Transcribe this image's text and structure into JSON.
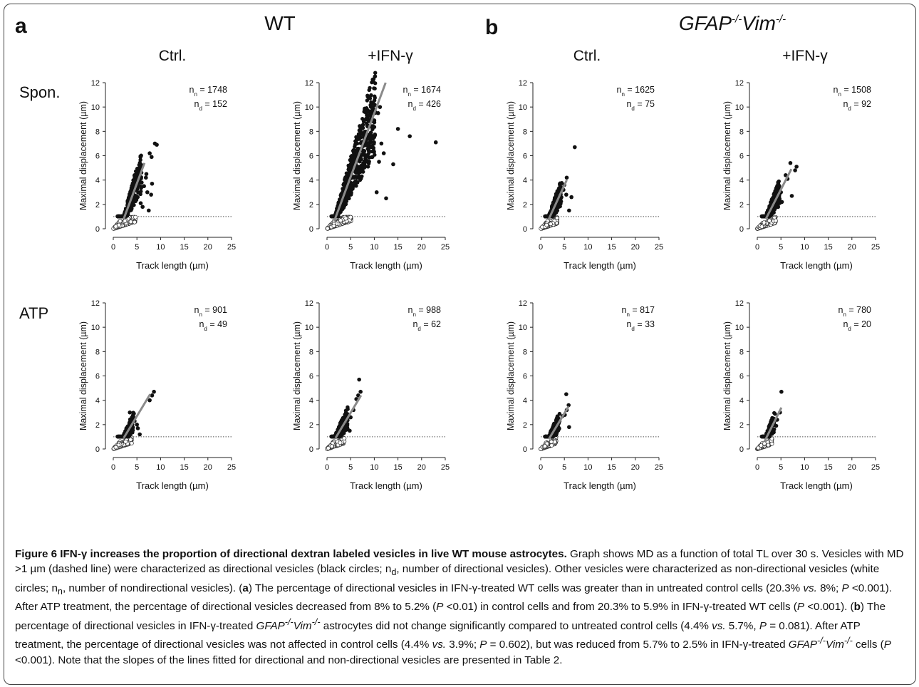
{
  "figure": {
    "panels": {
      "a": {
        "label": "a",
        "group": "WT"
      },
      "b": {
        "label": "b",
        "group_parts": [
          "GFAP",
          "-/-",
          "Vim",
          "-/-"
        ]
      }
    },
    "column_headers": [
      "Ctrl.",
      "+IFN-γ",
      "Ctrl.",
      "+IFN-γ"
    ],
    "row_labels": [
      "Spon.",
      "ATP"
    ],
    "axis": {
      "xlabel": "Track length (µm)",
      "ylabel": "Maximal displacement (µm)",
      "xticks": [
        "0",
        "5",
        "10",
        "15",
        "20",
        "25"
      ],
      "yticks": [
        "0",
        "2",
        "4",
        "6",
        "8",
        "10",
        "12"
      ]
    },
    "n_symbols": {
      "n": "n",
      "sub_n": "n",
      "sub_d": "d",
      "eq": "= "
    }
  },
  "chart_data": [
    {
      "type": "scatter",
      "panel": "a",
      "condition": "WT",
      "treatment": "Ctrl.",
      "stimulus": "Spon.",
      "xlim": [
        0,
        25
      ],
      "ylim": [
        0,
        12
      ],
      "threshold": 1,
      "n_n": "1748",
      "n_d": "152",
      "fit_line": {
        "x": [
          2.2,
          6.6
        ],
        "y": [
          0.8,
          5.4
        ]
      },
      "point_cloud": {
        "max_tl": 6.0,
        "nd_max_tl": 4.6,
        "density": 900
      },
      "highlighted_points": [
        [
          8.8,
          7.0
        ],
        [
          9.2,
          6.9
        ],
        [
          7.7,
          6.2
        ],
        [
          8.1,
          5.9
        ],
        [
          7.0,
          4.5
        ],
        [
          6.9,
          4.2
        ],
        [
          8.2,
          3.7
        ],
        [
          5.5,
          4.8
        ],
        [
          5.6,
          4.9
        ],
        [
          6.5,
          3.5
        ],
        [
          8.0,
          2.8
        ],
        [
          7.2,
          3.0
        ],
        [
          6.0,
          3.8
        ],
        [
          6.2,
          1.8
        ],
        [
          5.8,
          2.1
        ],
        [
          7.5,
          1.5
        ]
      ]
    },
    {
      "type": "scatter",
      "panel": "a",
      "condition": "WT",
      "treatment": "+IFN-γ",
      "stimulus": "Spon.",
      "xlim": [
        0,
        25
      ],
      "ylim": [
        0,
        12
      ],
      "threshold": 1,
      "n_n": "1674",
      "n_d": "426",
      "fit_line": {
        "x": [
          1.5,
          12.4
        ],
        "y": [
          0.6,
          12.0
        ]
      },
      "point_cloud": {
        "max_tl": 10.2,
        "nd_max_tl": 5.0,
        "density": 1800
      },
      "highlighted_points": [
        [
          11.2,
          10.0
        ],
        [
          10.8,
          9.5
        ],
        [
          10.0,
          8.9
        ],
        [
          9.3,
          7.9
        ],
        [
          9.0,
          7.5
        ],
        [
          11.5,
          7.0
        ],
        [
          12.0,
          6.2
        ],
        [
          15.0,
          8.2
        ],
        [
          17.5,
          7.6
        ],
        [
          23.0,
          7.1
        ],
        [
          14.0,
          5.3
        ],
        [
          11.0,
          5.5
        ],
        [
          8.6,
          8.4
        ],
        [
          8.0,
          7.2
        ],
        [
          9.5,
          6.8
        ],
        [
          12.5,
          2.5
        ],
        [
          10.5,
          3.0
        ]
      ]
    },
    {
      "type": "scatter",
      "panel": "b",
      "condition": "GFAP-/-Vim-/-",
      "treatment": "Ctrl.",
      "stimulus": "Spon.",
      "xlim": [
        0,
        25
      ],
      "ylim": [
        0,
        12
      ],
      "threshold": 1,
      "n_n": "1625",
      "n_d": "75",
      "fit_line": {
        "x": [
          1.6,
          5.5
        ],
        "y": [
          0.7,
          4.0
        ]
      },
      "point_cloud": {
        "max_tl": 4.5,
        "nd_max_tl": 3.4,
        "density": 650
      },
      "highlighted_points": [
        [
          7.2,
          6.7
        ],
        [
          5.5,
          4.2
        ],
        [
          5.0,
          3.6
        ],
        [
          4.8,
          3.2
        ],
        [
          5.4,
          2.8
        ],
        [
          6.5,
          2.6
        ],
        [
          6.0,
          1.5
        ],
        [
          4.2,
          3.0
        ]
      ]
    },
    {
      "type": "scatter",
      "panel": "b",
      "condition": "GFAP-/-Vim-/-",
      "treatment": "+IFN-γ",
      "stimulus": "Spon.",
      "xlim": [
        0,
        25
      ],
      "ylim": [
        0,
        12
      ],
      "threshold": 1,
      "n_n": "1508",
      "n_d": "92",
      "fit_line": {
        "x": [
          1.8,
          7.2
        ],
        "y": [
          0.8,
          4.9
        ]
      },
      "point_cloud": {
        "max_tl": 4.8,
        "nd_max_tl": 3.8,
        "density": 700
      },
      "highlighted_points": [
        [
          7.0,
          5.4
        ],
        [
          8.3,
          5.1
        ],
        [
          8.0,
          4.8
        ],
        [
          6.0,
          4.4
        ],
        [
          6.4,
          4.1
        ],
        [
          5.0,
          3.0
        ],
        [
          7.3,
          2.7
        ],
        [
          5.2,
          2.2
        ],
        [
          4.0,
          2.5
        ]
      ]
    },
    {
      "type": "scatter",
      "panel": "a",
      "condition": "WT",
      "treatment": "Ctrl.",
      "stimulus": "ATP",
      "xlim": [
        0,
        25
      ],
      "ylim": [
        0,
        12
      ],
      "threshold": 1,
      "n_n": "901",
      "n_d": "49",
      "fit_line": {
        "x": [
          2.2,
          7.8
        ],
        "y": [
          0.9,
          4.5
        ]
      },
      "point_cloud": {
        "max_tl": 4.4,
        "nd_max_tl": 3.8,
        "density": 500
      },
      "highlighted_points": [
        [
          8.6,
          4.7
        ],
        [
          8.2,
          4.4
        ],
        [
          7.7,
          4.0
        ],
        [
          3.5,
          3.0
        ],
        [
          4.5,
          2.3
        ],
        [
          5.2,
          1.7
        ],
        [
          5.6,
          1.2
        ],
        [
          5.0,
          2.0
        ]
      ]
    },
    {
      "type": "scatter",
      "panel": "a",
      "condition": "WT",
      "treatment": "+IFN-γ",
      "stimulus": "ATP",
      "xlim": [
        0,
        25
      ],
      "ylim": [
        0,
        12
      ],
      "threshold": 1,
      "n_n": "988",
      "n_d": "62",
      "fit_line": {
        "x": [
          1.8,
          7.2
        ],
        "y": [
          0.9,
          4.4
        ]
      },
      "point_cloud": {
        "max_tl": 4.4,
        "nd_max_tl": 3.6,
        "density": 550
      },
      "highlighted_points": [
        [
          6.8,
          5.7
        ],
        [
          7.1,
          4.7
        ],
        [
          6.6,
          4.4
        ],
        [
          6.2,
          4.1
        ],
        [
          5.6,
          3.2
        ],
        [
          5.0,
          2.6
        ],
        [
          4.8,
          1.5
        ],
        [
          3.2,
          2.4
        ]
      ]
    },
    {
      "type": "scatter",
      "panel": "b",
      "condition": "GFAP-/-Vim-/-",
      "treatment": "Ctrl.",
      "stimulus": "ATP",
      "xlim": [
        0,
        25
      ],
      "ylim": [
        0,
        12
      ],
      "threshold": 1,
      "n_n": "817",
      "n_d": "33",
      "fit_line": {
        "x": [
          1.7,
          5.9
        ],
        "y": [
          0.8,
          3.5
        ]
      },
      "point_cloud": {
        "max_tl": 4.0,
        "nd_max_tl": 3.2,
        "density": 450
      },
      "highlighted_points": [
        [
          5.4,
          4.5
        ],
        [
          5.9,
          3.6
        ],
        [
          5.5,
          3.2
        ],
        [
          5.1,
          2.8
        ],
        [
          4.6,
          2.7
        ],
        [
          6.0,
          1.8
        ],
        [
          3.8,
          2.1
        ]
      ]
    },
    {
      "type": "scatter",
      "panel": "b",
      "condition": "GFAP-/-Vim-/-",
      "treatment": "+IFN-γ",
      "stimulus": "ATP",
      "xlim": [
        0,
        25
      ],
      "ylim": [
        0,
        12
      ],
      "threshold": 1,
      "n_n": "780",
      "n_d": "20",
      "fit_line": {
        "x": [
          1.5,
          5.1
        ],
        "y": [
          0.6,
          3.4
        ]
      },
      "point_cloud": {
        "max_tl": 3.8,
        "nd_max_tl": 3.0,
        "density": 400
      },
      "highlighted_points": [
        [
          5.1,
          4.7
        ],
        [
          4.8,
          3.0
        ],
        [
          4.2,
          2.4
        ],
        [
          3.6,
          2.3
        ],
        [
          3.3,
          2.0
        ],
        [
          4.0,
          1.9
        ]
      ]
    }
  ],
  "caption": {
    "title": "Figure 6 IFN-γ increases the proportion of directional dextran labeled vesicles in live WT mouse astrocytes.",
    "t1": " Graph shows MD as a function of total TL over 30 s. Vesicles with MD >1 µm (dashed line) were characterized as directional vesicles (black circles; n",
    "sub_d": "d",
    "t2": ", number of directional vesicles). Other vesicles were characterized as non-directional vesicles (white circles; n",
    "sub_n": "n",
    "t3": ", number of nondirectional vesicles). (",
    "a": "a",
    "t4": ") The percentage of directional vesicles in IFN-γ-treated WT cells was greater than in untreated control cells (20.3% ",
    "vs": "vs.",
    "t5": " 8%; ",
    "P": "P",
    "t6": " <0.001). After ATP treatment, the percentage of directional vesicles decreased from 8% to 5.2% (",
    "t7": " <0.01) in control cells and from 20.3% to 5.9% in IFN-γ-treated WT cells (",
    "t8": " <0.001). (",
    "b": "b",
    "t9": ") The percentage of directional vesicles in IFN-γ-treated ",
    "gfap": "GFAP",
    "ko": "-/-",
    "vim": "Vim",
    "t10": " astrocytes did not change significantly compared to untreated control cells (4.4% ",
    "t11": " 5.7%, ",
    "t12": " = 0.081). After ATP treatment, the percentage of directional vesicles was not affected in control cells (4.4% ",
    "t13": " 3.9%; ",
    "t14": " = 0.602), but was reduced from 5.7% to 2.5% in IFN-γ-treated ",
    "t15": " cells (",
    "t16": " <0.001). Note that the slopes of the lines fitted for directional and non-directional vesicles are presented in Table 2."
  }
}
